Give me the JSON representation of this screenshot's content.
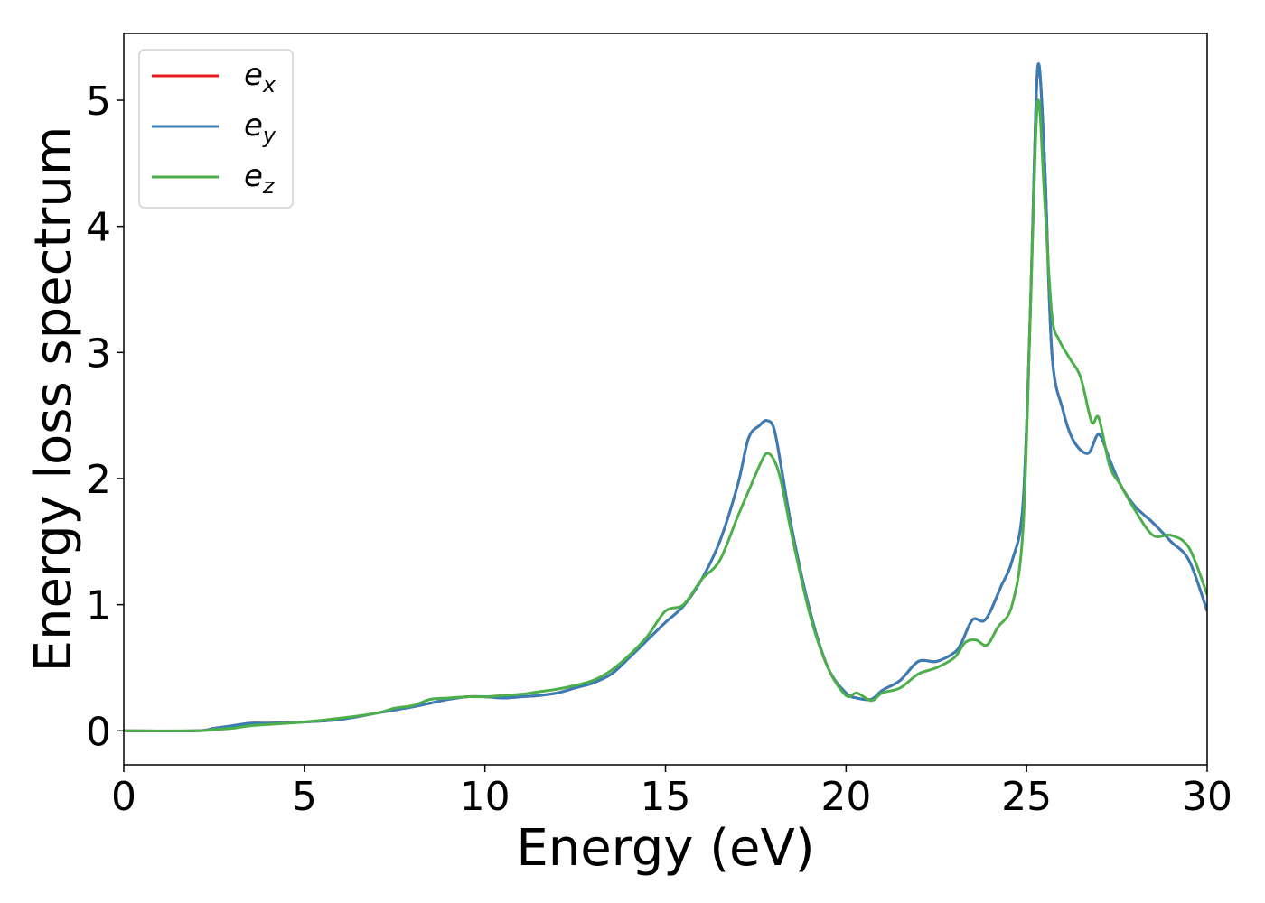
{
  "chart_data": {
    "type": "line",
    "title": "",
    "xlabel": "Energy (eV)",
    "ylabel": "Energy loss spectrum",
    "xlim": [
      0,
      30
    ],
    "ylim": [
      -0.27,
      5.53
    ],
    "xticks": [
      0,
      5,
      10,
      15,
      20,
      25,
      30
    ],
    "yticks": [
      0,
      1,
      2,
      3,
      4,
      5
    ],
    "grid": false,
    "legend_position": "top-left",
    "series": [
      {
        "name": "e_x",
        "label_base": "e",
        "label_sub": "x",
        "color": "#e41a1c",
        "x": [
          0,
          2,
          2.5,
          3,
          3.5,
          4,
          5,
          6,
          7,
          8,
          8.5,
          9,
          9.5,
          10,
          10.5,
          11,
          11.5,
          12,
          12.5,
          13,
          13.5,
          14,
          14.5,
          15,
          15.5,
          16,
          16.5,
          17,
          17.3,
          17.6,
          17.8,
          18,
          18.2,
          18.5,
          19,
          19.5,
          20,
          20.3,
          20.7,
          21,
          21.5,
          22,
          22.5,
          23,
          23.2,
          23.5,
          23.8,
          24,
          24.3,
          24.6,
          24.9,
          25.1,
          25.25,
          25.35,
          25.5,
          25.7,
          26,
          26.3,
          26.7,
          27,
          27.3,
          27.6,
          28,
          28.5,
          29,
          29.5,
          30
        ],
        "y": [
          0,
          0,
          0.02,
          0.04,
          0.06,
          0.06,
          0.07,
          0.09,
          0.14,
          0.19,
          0.22,
          0.25,
          0.27,
          0.27,
          0.26,
          0.27,
          0.28,
          0.3,
          0.34,
          0.38,
          0.45,
          0.58,
          0.72,
          0.86,
          0.99,
          1.2,
          1.5,
          1.95,
          2.32,
          2.42,
          2.46,
          2.4,
          2.1,
          1.6,
          0.95,
          0.5,
          0.3,
          0.26,
          0.25,
          0.32,
          0.4,
          0.55,
          0.55,
          0.62,
          0.7,
          0.88,
          0.87,
          0.95,
          1.15,
          1.35,
          1.8,
          3.3,
          4.9,
          5.27,
          4.5,
          3.0,
          2.55,
          2.3,
          2.2,
          2.35,
          2.15,
          1.95,
          1.78,
          1.65,
          1.5,
          1.35,
          0.95
        ]
      },
      {
        "name": "e_y",
        "label_base": "e",
        "label_sub": "y",
        "color": "#377eb8",
        "x": [
          0,
          2,
          2.5,
          3,
          3.5,
          4,
          5,
          6,
          7,
          8,
          8.5,
          9,
          9.5,
          10,
          10.5,
          11,
          11.5,
          12,
          12.5,
          13,
          13.5,
          14,
          14.5,
          15,
          15.5,
          16,
          16.5,
          17,
          17.3,
          17.6,
          17.8,
          18,
          18.2,
          18.5,
          19,
          19.5,
          20,
          20.3,
          20.7,
          21,
          21.5,
          22,
          22.5,
          23,
          23.2,
          23.5,
          23.8,
          24,
          24.3,
          24.6,
          24.9,
          25.1,
          25.25,
          25.35,
          25.5,
          25.7,
          26,
          26.3,
          26.7,
          27,
          27.3,
          27.6,
          28,
          28.5,
          29,
          29.5,
          30
        ],
        "y": [
          0,
          0,
          0.02,
          0.04,
          0.06,
          0.06,
          0.07,
          0.09,
          0.14,
          0.19,
          0.22,
          0.25,
          0.27,
          0.27,
          0.26,
          0.27,
          0.28,
          0.3,
          0.34,
          0.38,
          0.45,
          0.58,
          0.72,
          0.86,
          0.99,
          1.2,
          1.5,
          1.95,
          2.32,
          2.42,
          2.46,
          2.4,
          2.1,
          1.6,
          0.95,
          0.5,
          0.3,
          0.26,
          0.25,
          0.32,
          0.4,
          0.55,
          0.55,
          0.62,
          0.7,
          0.88,
          0.87,
          0.95,
          1.15,
          1.35,
          1.8,
          3.3,
          4.9,
          5.27,
          4.5,
          3.0,
          2.55,
          2.3,
          2.2,
          2.35,
          2.15,
          1.95,
          1.78,
          1.65,
          1.5,
          1.35,
          0.95
        ]
      },
      {
        "name": "e_z",
        "label_base": "e",
        "label_sub": "z",
        "color": "#4daf4a",
        "x": [
          0,
          2,
          2.5,
          3,
          3.5,
          4,
          5,
          6,
          7,
          7.5,
          8,
          8.5,
          9,
          9.5,
          10,
          10.5,
          11,
          11.5,
          12,
          12.5,
          13,
          13.5,
          14,
          14.5,
          15,
          15.5,
          16,
          16.5,
          17,
          17.3,
          17.6,
          17.8,
          18,
          18.2,
          18.5,
          19,
          19.5,
          20,
          20.3,
          20.7,
          21,
          21.5,
          22,
          22.5,
          23,
          23.3,
          23.6,
          23.9,
          24.2,
          24.6,
          24.9,
          25.1,
          25.25,
          25.35,
          25.5,
          25.7,
          25.9,
          26.2,
          26.5,
          26.8,
          27,
          27.3,
          27.6,
          28,
          28.5,
          29,
          29.5,
          30
        ],
        "y": [
          0,
          0,
          0.01,
          0.02,
          0.04,
          0.05,
          0.07,
          0.1,
          0.14,
          0.18,
          0.2,
          0.25,
          0.26,
          0.27,
          0.27,
          0.28,
          0.29,
          0.31,
          0.33,
          0.36,
          0.4,
          0.48,
          0.6,
          0.75,
          0.95,
          1.0,
          1.2,
          1.35,
          1.7,
          1.9,
          2.1,
          2.2,
          2.15,
          1.98,
          1.55,
          0.92,
          0.5,
          0.28,
          0.3,
          0.24,
          0.3,
          0.34,
          0.45,
          0.5,
          0.58,
          0.7,
          0.72,
          0.68,
          0.82,
          1.0,
          1.6,
          3.3,
          4.7,
          4.97,
          4.2,
          3.3,
          3.1,
          2.95,
          2.8,
          2.45,
          2.48,
          2.1,
          1.95,
          1.75,
          1.55,
          1.55,
          1.45,
          1.08
        ]
      }
    ]
  }
}
